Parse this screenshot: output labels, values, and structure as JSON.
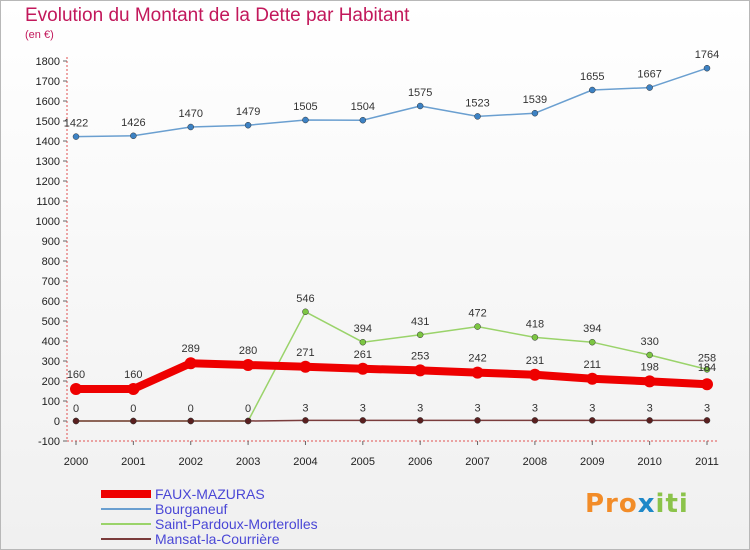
{
  "header": {
    "title": "Evolution du Montant de la Dette par Habitant",
    "subtitle": "(en €)"
  },
  "logo": {
    "parts": [
      "Pro",
      "x",
      "iti"
    ],
    "colors": [
      "#f28c28",
      "#1e88c8",
      "#8bc34a"
    ]
  },
  "chart_data": {
    "type": "line",
    "x": [
      "2000",
      "2001",
      "2002",
      "2003",
      "2004",
      "2005",
      "2006",
      "2007",
      "2008",
      "2009",
      "2010",
      "2011"
    ],
    "ylim": [
      -100,
      1800
    ],
    "yticks": [
      -100,
      0,
      100,
      200,
      300,
      400,
      500,
      600,
      700,
      800,
      900,
      1000,
      1100,
      1200,
      1300,
      1400,
      1500,
      1600,
      1700,
      1800
    ],
    "grid": false,
    "legend_position": "bottom-left",
    "series": [
      {
        "name": "Bourganeuf",
        "color": "#6a9fd0",
        "marker": "#3d82c4",
        "values": [
          1422,
          1426,
          1470,
          1479,
          1505,
          1504,
          1575,
          1523,
          1539,
          1655,
          1667,
          1764
        ],
        "labels": [
          "1422",
          "1426",
          "1470",
          "1479",
          "1505",
          "1504",
          "1575",
          "1523",
          "1539",
          "1655",
          "1667",
          "1764"
        ]
      },
      {
        "name": "Saint-Pardoux-Morterolles",
        "color": "#9ad36a",
        "marker": "#7cc642",
        "values": [
          0,
          0,
          0,
          0,
          546,
          394,
          431,
          472,
          418,
          394,
          330,
          258
        ],
        "labels": [
          "",
          "",
          "",
          "",
          "546",
          "394",
          "431",
          "472",
          "418",
          "394",
          "330",
          "258"
        ]
      },
      {
        "name": "FAUX-MAZURAS",
        "color": "#ee0000",
        "marker": "#ee0000",
        "values": [
          160,
          160,
          289,
          280,
          271,
          261,
          253,
          242,
          231,
          211,
          198,
          184
        ],
        "labels": [
          "160",
          "160",
          "289",
          "280",
          "271",
          "261",
          "253",
          "242",
          "231",
          "211",
          "198",
          "184"
        ]
      },
      {
        "name": "Mansat-la-Courrière",
        "color": "#7a3b3b",
        "marker": "#5a1f1f",
        "values": [
          0,
          0,
          0,
          0,
          3,
          3,
          3,
          3,
          3,
          3,
          3,
          3
        ],
        "labels": [
          "0",
          "0",
          "0",
          "0",
          "3",
          "3",
          "3",
          "3",
          "3",
          "3",
          "3",
          "3"
        ]
      }
    ],
    "legend": [
      "FAUX-MAZURAS",
      "Bourganeuf",
      "Saint-Pardoux-Morterolles",
      "Mansat-la-Courrière"
    ]
  }
}
